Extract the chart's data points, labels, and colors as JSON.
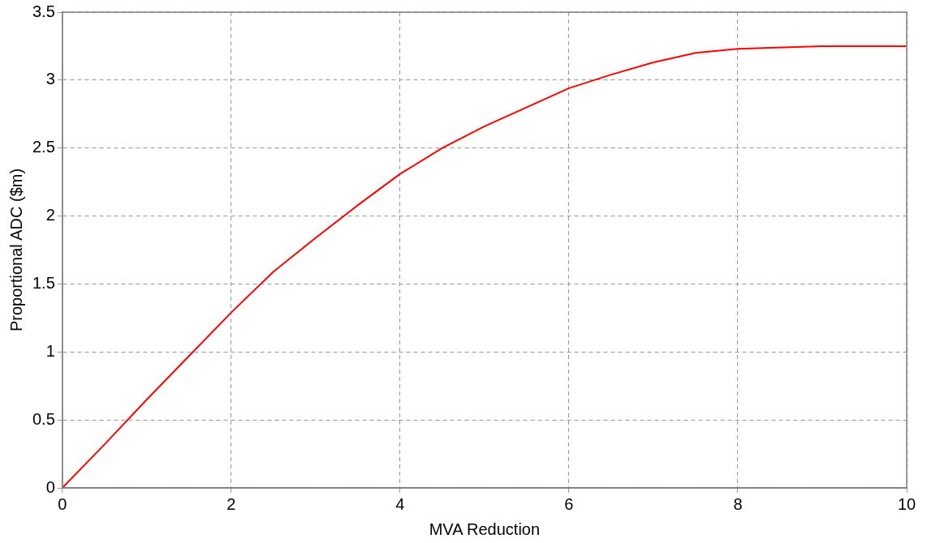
{
  "chart_data": {
    "type": "line",
    "xlabel": "MVA Reduction",
    "ylabel": "Proportional ADC ($m)",
    "x": [
      0,
      0.5,
      1,
      1.5,
      2,
      2.5,
      3,
      3.5,
      4,
      4.5,
      5,
      5.5,
      6,
      6.5,
      7,
      7.5,
      8,
      9,
      10
    ],
    "series": [
      {
        "color": "#ff0000",
        "values": [
          0,
          0.32,
          0.65,
          0.97,
          1.29,
          1.59,
          1.84,
          2.08,
          2.31,
          2.5,
          2.66,
          2.8,
          2.94,
          3.04,
          3.13,
          3.2,
          3.23,
          3.25,
          3.25
        ]
      }
    ],
    "xlim": [
      0,
      10
    ],
    "xticks": [
      0,
      2,
      4,
      6,
      8,
      10
    ],
    "ylim": [
      0,
      3.5
    ],
    "yticks": [
      0,
      0.5,
      1,
      1.5,
      2,
      2.5,
      3,
      3.5
    ],
    "grid": true,
    "legend": false,
    "marker": "none",
    "line_style": "solid"
  }
}
